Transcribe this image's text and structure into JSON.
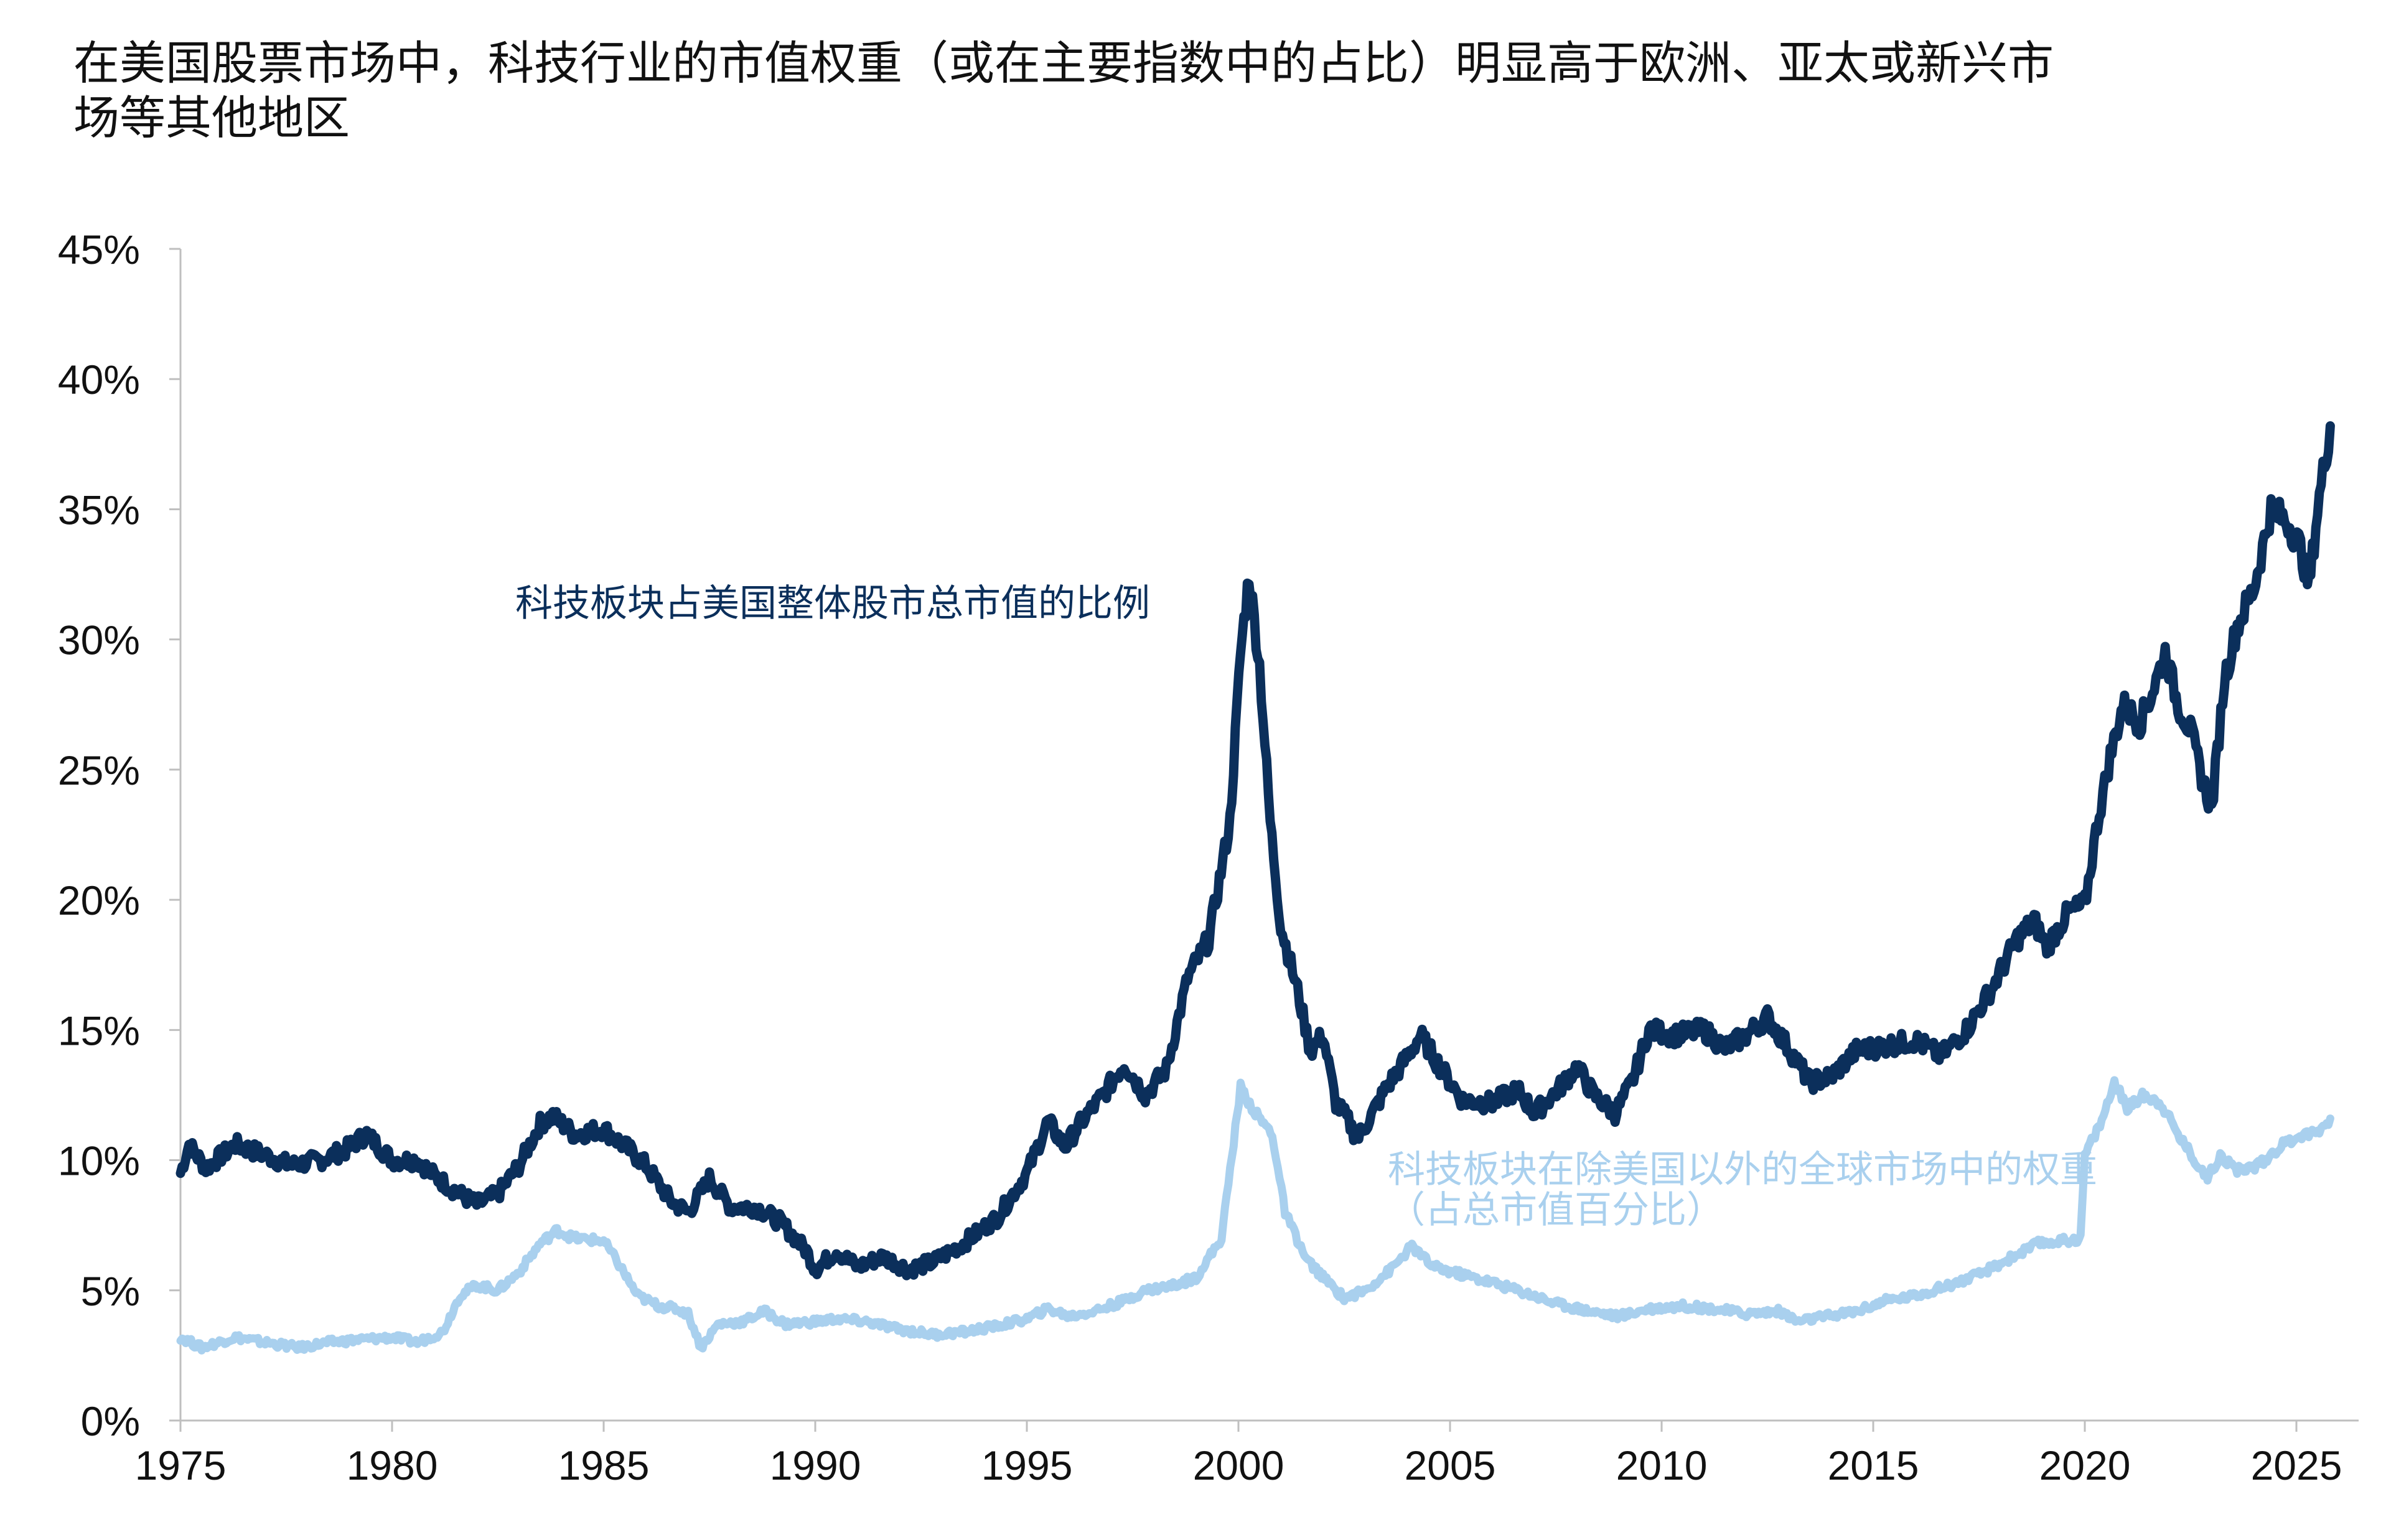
{
  "chart_title": "在美国股票市场中，科技行业的市值权重（或在主要指数中的占比）明显高于欧洲、亚太或新兴市场等其他地区",
  "chart_data": {
    "type": "line",
    "title": "在美国股票市场中，科技行业的市值权重（或在主要指数中的占比）明显高于欧洲、亚太或新兴市场等其他地区",
    "xlabel": "",
    "ylabel": "",
    "xlim": [
      1975,
      2026.4
    ],
    "ylim": [
      0,
      45
    ],
    "x_ticks": [
      "1975",
      "1980",
      "1985",
      "1990",
      "1995",
      "2000",
      "2005",
      "2010",
      "2015",
      "2020",
      "2025"
    ],
    "y_ticks": [
      "0%",
      "5%",
      "10%",
      "15%",
      "20%",
      "25%",
      "30%",
      "35%",
      "40%",
      "45%"
    ],
    "grid": false,
    "legend": "none",
    "series": [
      {
        "name": "科技板块占美国整体股市总市值的比例",
        "color": "#0b2f5b",
        "points": [
          [
            1975.0,
            9.5
          ],
          [
            1975.2,
            10.6
          ],
          [
            1975.6,
            9.7
          ],
          [
            1976.3,
            10.6
          ],
          [
            1977.0,
            10.2
          ],
          [
            1977.6,
            9.8
          ],
          [
            1978.3,
            10.0
          ],
          [
            1978.9,
            10.4
          ],
          [
            1979.4,
            11.0
          ],
          [
            1980.0,
            10.0
          ],
          [
            1980.6,
            10.0
          ],
          [
            1981.0,
            9.4
          ],
          [
            1981.6,
            8.7
          ],
          [
            1982.0,
            8.3
          ],
          [
            1982.5,
            8.7
          ],
          [
            1983.0,
            9.8
          ],
          [
            1983.5,
            11.4
          ],
          [
            1983.8,
            11.7
          ],
          [
            1984.3,
            11.0
          ],
          [
            1985.0,
            11.2
          ],
          [
            1985.6,
            10.4
          ],
          [
            1986.0,
            9.8
          ],
          [
            1986.6,
            8.4
          ],
          [
            1987.0,
            8.0
          ],
          [
            1987.5,
            9.3
          ],
          [
            1988.0,
            8.2
          ],
          [
            1988.6,
            8.2
          ],
          [
            1989.2,
            7.6
          ],
          [
            1989.8,
            6.5
          ],
          [
            1990.0,
            5.8
          ],
          [
            1990.5,
            6.5
          ],
          [
            1991.0,
            5.9
          ],
          [
            1991.6,
            6.3
          ],
          [
            1992.2,
            5.8
          ],
          [
            1992.8,
            6.1
          ],
          [
            1993.5,
            6.8
          ],
          [
            1994.3,
            7.8
          ],
          [
            1995.0,
            9.5
          ],
          [
            1995.5,
            11.5
          ],
          [
            1995.9,
            10.5
          ],
          [
            1996.3,
            11.5
          ],
          [
            1996.8,
            12.5
          ],
          [
            1997.3,
            13.7
          ],
          [
            1997.8,
            12.5
          ],
          [
            1998.3,
            13.5
          ],
          [
            1998.8,
            17.0
          ],
          [
            1999.3,
            18.5
          ],
          [
            1999.8,
            23.0
          ],
          [
            2000.05,
            29.5
          ],
          [
            2000.25,
            32.5
          ],
          [
            2000.5,
            29.0
          ],
          [
            2000.75,
            23.0
          ],
          [
            2001.0,
            19.0
          ],
          [
            2001.4,
            16.5
          ],
          [
            2001.7,
            14.2
          ],
          [
            2002.0,
            14.8
          ],
          [
            2002.3,
            12.2
          ],
          [
            2002.6,
            11.5
          ],
          [
            2002.8,
            10.8
          ],
          [
            2003.1,
            11.6
          ],
          [
            2003.5,
            12.8
          ],
          [
            2004.0,
            14.0
          ],
          [
            2004.3,
            14.8
          ],
          [
            2004.8,
            13.5
          ],
          [
            2005.3,
            12.3
          ],
          [
            2006.0,
            12.2
          ],
          [
            2006.6,
            12.7
          ],
          [
            2007.0,
            11.8
          ],
          [
            2007.6,
            12.8
          ],
          [
            2008.0,
            13.6
          ],
          [
            2008.4,
            12.5
          ],
          [
            2008.9,
            11.8
          ],
          [
            2009.3,
            13.0
          ],
          [
            2009.7,
            15.0
          ],
          [
            2010.3,
            14.8
          ],
          [
            2011.0,
            15.0
          ],
          [
            2011.5,
            14.3
          ],
          [
            2012.0,
            14.8
          ],
          [
            2012.5,
            15.5
          ],
          [
            2013.0,
            14.3
          ],
          [
            2013.5,
            13.0
          ],
          [
            2014.0,
            13.2
          ],
          [
            2014.6,
            14.2
          ],
          [
            2015.3,
            14.4
          ],
          [
            2016.0,
            14.6
          ],
          [
            2016.6,
            14.0
          ],
          [
            2017.2,
            15.0
          ],
          [
            2017.8,
            16.6
          ],
          [
            2018.4,
            18.5
          ],
          [
            2018.8,
            19.2
          ],
          [
            2019.1,
            18.2
          ],
          [
            2019.6,
            19.5
          ],
          [
            2020.0,
            19.8
          ],
          [
            2020.3,
            23.0
          ],
          [
            2020.6,
            25.5
          ],
          [
            2020.9,
            27.5
          ],
          [
            2021.3,
            26.8
          ],
          [
            2021.6,
            28.0
          ],
          [
            2021.9,
            29.5
          ],
          [
            2022.2,
            27.5
          ],
          [
            2022.5,
            26.5
          ],
          [
            2022.8,
            24.5
          ],
          [
            2023.0,
            23.5
          ],
          [
            2023.3,
            28.5
          ],
          [
            2023.6,
            30.5
          ],
          [
            2024.0,
            32.0
          ],
          [
            2024.4,
            35.0
          ],
          [
            2024.8,
            34.5
          ],
          [
            2025.1,
            33.5
          ],
          [
            2025.3,
            32.0
          ],
          [
            2025.5,
            35.0
          ],
          [
            2025.8,
            38.2
          ]
        ]
      },
      {
        "name": "科技板块在除美国以外的全球市场中的权重（占总市值百分比）",
        "color": "#a9d0ee",
        "points": [
          [
            1975.0,
            3.2
          ],
          [
            1975.5,
            2.8
          ],
          [
            1976.3,
            3.2
          ],
          [
            1977.0,
            3.0
          ],
          [
            1977.8,
            2.8
          ],
          [
            1978.5,
            3.0
          ],
          [
            1979.2,
            3.1
          ],
          [
            1980.0,
            3.2
          ],
          [
            1980.6,
            3.0
          ],
          [
            1981.2,
            3.4
          ],
          [
            1981.6,
            4.8
          ],
          [
            1982.0,
            5.2
          ],
          [
            1982.5,
            5.0
          ],
          [
            1983.0,
            5.7
          ],
          [
            1983.5,
            6.8
          ],
          [
            1983.9,
            7.3
          ],
          [
            1984.3,
            7.0
          ],
          [
            1985.0,
            6.9
          ],
          [
            1985.4,
            5.9
          ],
          [
            1985.8,
            4.8
          ],
          [
            1986.3,
            4.4
          ],
          [
            1986.7,
            4.3
          ],
          [
            1987.0,
            4.1
          ],
          [
            1987.3,
            2.8
          ],
          [
            1987.7,
            3.7
          ],
          [
            1988.3,
            3.8
          ],
          [
            1988.8,
            4.2
          ],
          [
            1989.3,
            3.7
          ],
          [
            1990.0,
            3.8
          ],
          [
            1990.5,
            3.9
          ],
          [
            1991.2,
            3.8
          ],
          [
            1992.0,
            3.5
          ],
          [
            1992.8,
            3.3
          ],
          [
            1993.5,
            3.4
          ],
          [
            1994.2,
            3.6
          ],
          [
            1995.0,
            3.9
          ],
          [
            1995.5,
            4.3
          ],
          [
            1996.0,
            4.0
          ],
          [
            1996.6,
            4.2
          ],
          [
            1997.3,
            4.6
          ],
          [
            1997.8,
            5.0
          ],
          [
            1998.5,
            5.2
          ],
          [
            1999.0,
            5.5
          ],
          [
            1999.6,
            7.0
          ],
          [
            2000.05,
            12.8
          ],
          [
            2000.4,
            11.8
          ],
          [
            2000.8,
            11.0
          ],
          [
            2001.1,
            8.0
          ],
          [
            2001.6,
            6.2
          ],
          [
            2002.0,
            5.5
          ],
          [
            2002.5,
            4.7
          ],
          [
            2003.0,
            5.0
          ],
          [
            2003.6,
            5.8
          ],
          [
            2004.1,
            6.7
          ],
          [
            2004.6,
            5.9
          ],
          [
            2005.3,
            5.6
          ],
          [
            2006.0,
            5.3
          ],
          [
            2006.8,
            4.9
          ],
          [
            2007.5,
            4.5
          ],
          [
            2008.3,
            4.2
          ],
          [
            2009.0,
            4.0
          ],
          [
            2009.7,
            4.3
          ],
          [
            2010.5,
            4.4
          ],
          [
            2011.2,
            4.3
          ],
          [
            2012.0,
            4.1
          ],
          [
            2012.8,
            4.2
          ],
          [
            2013.2,
            3.8
          ],
          [
            2013.9,
            4.0
          ],
          [
            2014.6,
            4.2
          ],
          [
            2015.3,
            4.6
          ],
          [
            2016.0,
            4.8
          ],
          [
            2016.8,
            5.2
          ],
          [
            2017.5,
            5.6
          ],
          [
            2018.2,
            6.2
          ],
          [
            2018.9,
            6.8
          ],
          [
            2019.5,
            6.9
          ],
          [
            2019.9,
            7.0
          ],
          [
            2020.0,
            10.2
          ],
          [
            2020.4,
            11.5
          ],
          [
            2020.7,
            13.0
          ],
          [
            2021.0,
            12.0
          ],
          [
            2021.4,
            12.5
          ],
          [
            2021.8,
            12.2
          ],
          [
            2022.2,
            11.0
          ],
          [
            2022.6,
            10.0
          ],
          [
            2022.9,
            9.3
          ],
          [
            2023.2,
            10.2
          ],
          [
            2023.6,
            9.6
          ],
          [
            2024.1,
            9.8
          ],
          [
            2024.6,
            10.5
          ],
          [
            2025.0,
            10.9
          ],
          [
            2025.5,
            11.1
          ],
          [
            2025.8,
            11.6
          ]
        ]
      }
    ]
  },
  "annotations": {
    "us_label": "科技板块占美国整体股市总市值的比例",
    "intl_label_line1": "科技板块在除美国以外的全球市场中的权重",
    "intl_label_line2": "（占总市值百分比）"
  }
}
